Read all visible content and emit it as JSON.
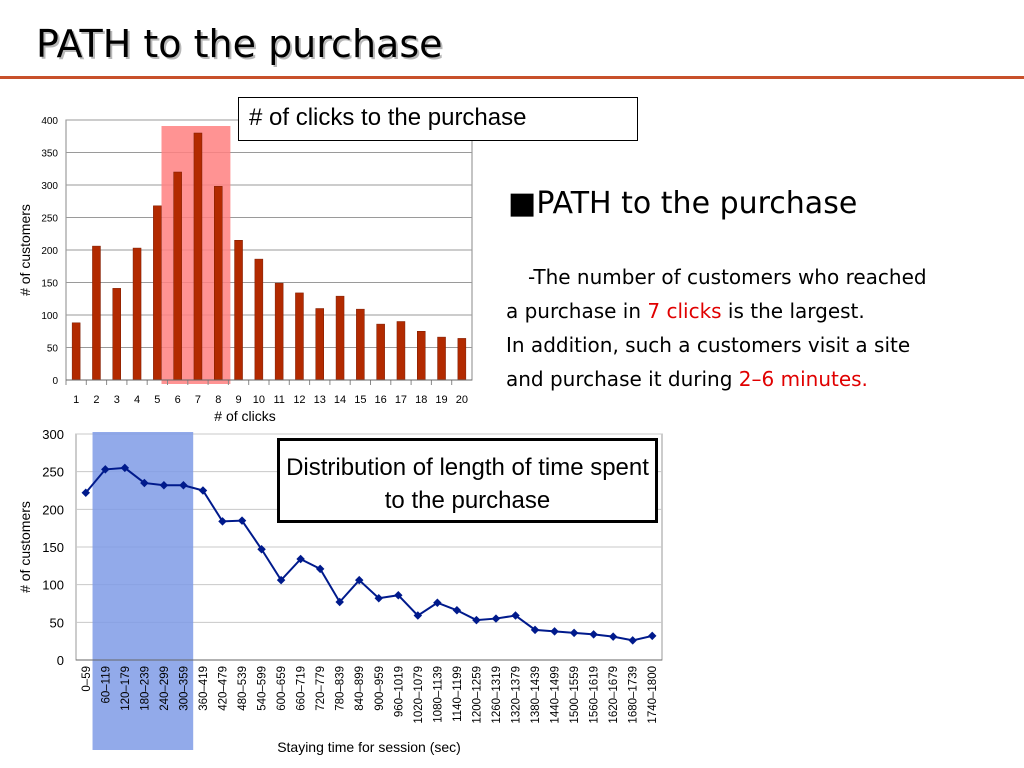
{
  "slide": {
    "title": "PATH to the purchase"
  },
  "description": {
    "heading_bullet": "■",
    "heading": "PATH to the purchase",
    "line1": "-The number of customers who reached",
    "line2_pre": "a purchase in ",
    "line2_red": "7 clicks",
    "line2_post": " is the largest.",
    "line3": "In addition, such a customers visit a site",
    "line4_pre": "and  purchase it during ",
    "line4_red": "2–6 minutes."
  },
  "colors": {
    "title_rule": "#c8502a",
    "bar": "#b22a00",
    "bar_highlight": "#ff8080",
    "line": "#001a8c",
    "line_highlight": "#7f9be6",
    "emphasis": "#e00000"
  },
  "chart_data": [
    {
      "type": "bar",
      "title": "# of clicks to the purchase",
      "xlabel": "# of clicks",
      "ylabel": "# of customers",
      "categories": [
        "1",
        "2",
        "3",
        "4",
        "5",
        "6",
        "7",
        "8",
        "9",
        "10",
        "11",
        "12",
        "13",
        "14",
        "15",
        "16",
        "17",
        "18",
        "19",
        "20"
      ],
      "values": [
        88,
        206,
        141,
        203,
        268,
        320,
        380,
        298,
        215,
        186,
        149,
        134,
        110,
        129,
        109,
        86,
        90,
        75,
        66,
        64
      ],
      "ylim": [
        0,
        400
      ],
      "yticks": [
        "0",
        "50",
        "100",
        "150",
        "200",
        "250",
        "300",
        "350",
        "400"
      ],
      "highlight_categories": [
        "6",
        "7",
        "8"
      ],
      "grid": true
    },
    {
      "type": "line",
      "title": "Distribution of length of time spent to the purchase",
      "xlabel": "Staying time for session (sec)",
      "ylabel": "# of customers",
      "categories": [
        "0–59",
        "60–119",
        "120–179",
        "180–239",
        "240–299",
        "300–359",
        "360–419",
        "420–479",
        "480–539",
        "540–599",
        "600–659",
        "660–719",
        "720–779",
        "780–839",
        "840–899",
        "900–959",
        "960–1019",
        "1020–1079",
        "1080–1139",
        "1140–1199",
        "1200–1259",
        "1260–1319",
        "1320–1379",
        "1380–1439",
        "1440–1499",
        "1500–1559",
        "1560–1619",
        "1620–1679",
        "1680–1739",
        "1740–1800"
      ],
      "values": [
        222,
        253,
        255,
        235,
        232,
        232,
        225,
        184,
        185,
        147,
        106,
        134,
        121,
        77,
        106,
        82,
        86,
        59,
        76,
        66,
        53,
        55,
        59,
        40,
        38,
        36,
        34,
        31,
        26,
        32
      ],
      "ylim": [
        0,
        300
      ],
      "yticks": [
        "0",
        "50",
        "100",
        "150",
        "200",
        "250",
        "300"
      ],
      "highlight_categories": [
        "60–119",
        "120–179",
        "180–239",
        "240–299",
        "300–359"
      ],
      "grid": true
    }
  ]
}
